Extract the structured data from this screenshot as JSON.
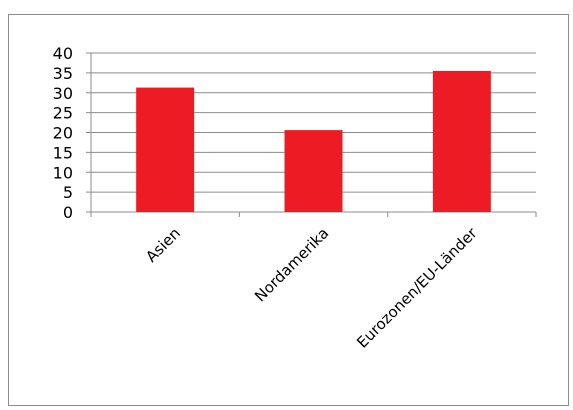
{
  "chart_data": {
    "type": "bar",
    "categories": [
      "Asien",
      "Nordamerika",
      "Eurozonen/EU-Länder"
    ],
    "values": [
      31.3,
      20.6,
      35.5
    ],
    "ylim": [
      0,
      40
    ],
    "yticks": [
      0,
      5,
      10,
      15,
      20,
      25,
      30,
      35,
      40
    ],
    "grid": true,
    "legend": "none",
    "bar_color": "#ed1c24",
    "grid_color": "#8c8c8c"
  }
}
